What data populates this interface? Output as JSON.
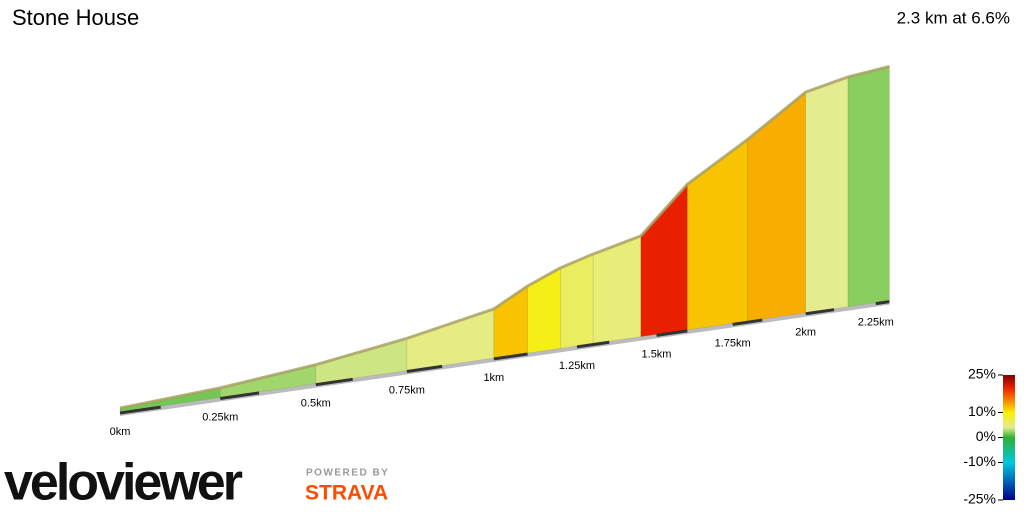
{
  "chart_data": {
    "type": "elevation-profile",
    "title": "Stone House",
    "subtitle": "2.3 km at 6.6%",
    "xlim": [
      0,
      2.3
    ],
    "xticks": [
      {
        "value": 0,
        "label": "0km"
      },
      {
        "value": 0.25,
        "label": "0.25km"
      },
      {
        "value": 0.5,
        "label": "0.5km"
      },
      {
        "value": 0.75,
        "label": "0.75km"
      },
      {
        "value": 1,
        "label": "1km"
      },
      {
        "value": 1.25,
        "label": "1.25km"
      },
      {
        "value": 1.5,
        "label": "1.5km"
      },
      {
        "value": 1.75,
        "label": "1.75km"
      },
      {
        "value": 2,
        "label": "2km"
      },
      {
        "value": 2.25,
        "label": "2.25km"
      }
    ],
    "segments": [
      {
        "start": 0,
        "end": 0.25,
        "gradient": 1.5
      },
      {
        "start": 0.25,
        "end": 0.5,
        "gradient": 2.5
      },
      {
        "start": 0.5,
        "end": 0.75,
        "gradient": 3.5
      },
      {
        "start": 0.75,
        "end": 1,
        "gradient": 4.5
      },
      {
        "start": 1,
        "end": 1.1,
        "gradient": 12
      },
      {
        "start": 1.1,
        "end": 1.2,
        "gradient": 9
      },
      {
        "start": 1.2,
        "end": 1.3,
        "gradient": 6
      },
      {
        "start": 1.3,
        "end": 1.45,
        "gradient": 5
      },
      {
        "start": 1.45,
        "end": 1.6,
        "gradient": 20
      },
      {
        "start": 1.6,
        "end": 1.8,
        "gradient": 12
      },
      {
        "start": 1.8,
        "end": 2,
        "gradient": 13
      },
      {
        "start": 2,
        "end": 2.15,
        "gradient": 4
      },
      {
        "start": 2.15,
        "end": 2.3,
        "gradient": 2
      }
    ],
    "colorscale": [
      [
        -25,
        "#00008b"
      ],
      [
        -10,
        "#00c8e0"
      ],
      [
        0,
        "#30b030"
      ],
      [
        4,
        "#e4ec90"
      ],
      [
        10,
        "#f8f000"
      ],
      [
        15,
        "#f88000"
      ],
      [
        20,
        "#e82000"
      ],
      [
        25,
        "#800000"
      ]
    ],
    "legend_ticks": [
      {
        "value": 25,
        "label": "25%"
      },
      {
        "value": 10,
        "label": "10%"
      },
      {
        "value": 0,
        "label": "0%"
      },
      {
        "value": -10,
        "label": "-10%"
      },
      {
        "value": -25,
        "label": "-25%"
      }
    ],
    "branding": {
      "logo": "veloviewer",
      "powered": "POWERED BY",
      "partner": "STRAVA"
    }
  }
}
